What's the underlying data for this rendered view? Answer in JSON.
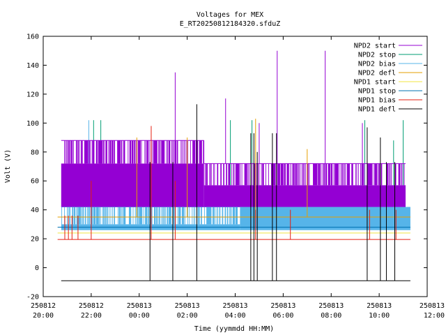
{
  "chart_data": {
    "type": "line",
    "title": "Voltages for MEX",
    "subtitle": "E_RT20250812184320.sfduZ",
    "xlabel": "Time (yymmdd HH:MM)",
    "ylabel": "Volt (V)",
    "ylim": [
      -20,
      160
    ],
    "yticks": [
      -20,
      0,
      20,
      40,
      60,
      80,
      100,
      120,
      140,
      160
    ],
    "xlim_hours": [
      0,
      16
    ],
    "xticks": [
      {
        "h": 0,
        "date": "250812",
        "time": "20:00"
      },
      {
        "h": 2,
        "date": "250812",
        "time": "22:00"
      },
      {
        "h": 4,
        "date": "250813",
        "time": "00:00"
      },
      {
        "h": 6,
        "date": "250813",
        "time": "02:00"
      },
      {
        "h": 8,
        "date": "250813",
        "time": "04:00"
      },
      {
        "h": 10,
        "date": "250813",
        "time": "06:00"
      },
      {
        "h": 12,
        "date": "250813",
        "time": "08:00"
      },
      {
        "h": 14,
        "date": "250813",
        "time": "10:00"
      },
      {
        "h": 16,
        "date": "250813",
        "time": "12:00"
      }
    ],
    "legend_position": "top-right",
    "series": [
      {
        "name": "NPD2 start",
        "color": "#9400d3",
        "segments": [
          {
            "h0": 0.75,
            "h1": 6.7,
            "low": 42,
            "high": 72,
            "top": 88
          },
          {
            "h0": 6.7,
            "h1": 14.3,
            "low": 42,
            "high": 57,
            "top": 72
          },
          {
            "h0": 14.3,
            "h1": 15.1,
            "low": 42,
            "high": 57,
            "top": 72
          }
        ],
        "spikes": [
          [
            5.5,
            135
          ],
          [
            7.6,
            117
          ],
          [
            9.0,
            100
          ],
          [
            9.75,
            150
          ],
          [
            11.75,
            150
          ],
          [
            13.3,
            100
          ]
        ]
      },
      {
        "name": "NPD2 stop",
        "color": "#009e73",
        "segments": [
          {
            "h0": 8.3,
            "h1": 10.3,
            "low": 42,
            "high": 57,
            "top": 57
          }
        ],
        "spikes": [
          [
            2.1,
            102
          ],
          [
            2.4,
            102
          ],
          [
            7.8,
            102
          ],
          [
            8.7,
            102
          ],
          [
            13.4,
            102
          ],
          [
            14.6,
            88
          ],
          [
            15.0,
            102
          ]
        ]
      },
      {
        "name": "NPD2 bias",
        "color": "#56b4e9",
        "segments": [
          {
            "h0": 0.75,
            "h1": 8.2,
            "low": 26,
            "high": 30,
            "top": 42
          },
          {
            "h0": 8.2,
            "h1": 15.3,
            "low": 26,
            "high": 42,
            "top": 42
          }
        ],
        "spikes": [
          [
            1.9,
            102
          ]
        ]
      },
      {
        "name": "NPD2 defl",
        "color": "#e69f00",
        "level": 35,
        "h0": 0.6,
        "h1": 15.3,
        "spikes": [
          [
            3.9,
            90
          ],
          [
            6.0,
            90
          ],
          [
            8.85,
            103
          ],
          [
            11.0,
            82
          ]
        ]
      },
      {
        "name": "NPD1 start",
        "color": "#f0e442",
        "level": 24,
        "h0": 0.6,
        "h1": 15.3,
        "spikes": []
      },
      {
        "name": "NPD1 stop",
        "color": "#0072b2",
        "level": 28,
        "h0": 0.6,
        "h1": 15.3,
        "spikes": []
      },
      {
        "name": "NPD1 bias",
        "color": "#e51e10",
        "level": 19.5,
        "h0": 0.6,
        "h1": 15.3,
        "spikes": [
          [
            0.9,
            36
          ],
          [
            1.05,
            36
          ],
          [
            1.2,
            36
          ],
          [
            1.45,
            36
          ],
          [
            2.0,
            60
          ],
          [
            4.5,
            98
          ],
          [
            5.5,
            60
          ],
          [
            8.85,
            40
          ],
          [
            10.3,
            40
          ],
          [
            13.6,
            40
          ],
          [
            14.7,
            40
          ]
        ]
      },
      {
        "name": "NPD1 defl",
        "color": "#000000",
        "level": -9,
        "h0": 0.75,
        "h1": 15.3,
        "spikes": [
          [
            4.45,
            73
          ],
          [
            5.4,
            73
          ],
          [
            6.4,
            113
          ],
          [
            8.65,
            93
          ],
          [
            8.78,
            93
          ],
          [
            8.92,
            80
          ],
          [
            9.55,
            93
          ],
          [
            9.72,
            93
          ],
          [
            13.5,
            97
          ],
          [
            14.05,
            90
          ],
          [
            14.3,
            73
          ],
          [
            14.65,
            73
          ]
        ]
      }
    ]
  }
}
